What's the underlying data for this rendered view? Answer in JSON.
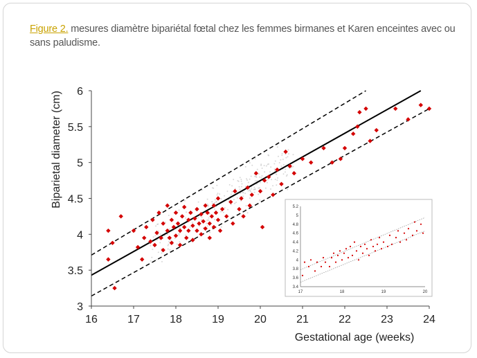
{
  "caption": {
    "label": "Figure 2.",
    "text": " mesures diamètre bipariétal fœtal chez les femmes birmanes et Karen enceintes avec ou sans paludisme."
  },
  "colors": {
    "accent": "#c9a200",
    "points": "#d40000",
    "background_points": "#b8b8b8",
    "text": "#555555"
  },
  "chart_data": [
    {
      "type": "scatter",
      "title": "",
      "xlabel": "Gestational age (weeks)",
      "ylabel": "Biparietal diameter (cm)",
      "xlim": [
        16,
        24
      ],
      "ylim": [
        3,
        6
      ],
      "xticks": [
        "16",
        "17",
        "18",
        "19",
        "20",
        "21",
        "22",
        "23",
        "24"
      ],
      "yticks": [
        "3",
        "3.5",
        "4",
        "4.5",
        "5",
        "5.5",
        "6"
      ],
      "reference_lines": [
        {
          "style": "solid",
          "x": [
            16,
            23.8
          ],
          "y": [
            3.43,
            6.0
          ]
        },
        {
          "style": "dashed",
          "x": [
            16,
            22.5
          ],
          "y": [
            3.71,
            6.0
          ]
        },
        {
          "style": "dashed",
          "x": [
            16,
            24
          ],
          "y": [
            3.14,
            5.75
          ]
        }
      ],
      "grid": false,
      "series": [
        {
          "marker": "diamond",
          "values": [
            [
              16.4,
              4.05
            ],
            [
              16.4,
              3.65
            ],
            [
              16.5,
              3.88
            ],
            [
              16.55,
              3.25
            ],
            [
              16.7,
              4.25
            ],
            [
              17.0,
              4.05
            ],
            [
              17.1,
              3.82
            ],
            [
              17.2,
              3.65
            ],
            [
              17.25,
              3.95
            ],
            [
              17.3,
              4.1
            ],
            [
              17.4,
              3.9
            ],
            [
              17.45,
              4.2
            ],
            [
              17.5,
              3.85
            ],
            [
              17.55,
              4.02
            ],
            [
              17.6,
              4.3
            ],
            [
              17.65,
              3.95
            ],
            [
              17.7,
              4.15
            ],
            [
              17.7,
              3.78
            ],
            [
              17.8,
              4.05
            ],
            [
              17.8,
              4.4
            ],
            [
              17.85,
              3.95
            ],
            [
              17.9,
              4.2
            ],
            [
              17.9,
              3.88
            ],
            [
              17.95,
              4.1
            ],
            [
              18.0,
              4.3
            ],
            [
              18.0,
              3.98
            ],
            [
              18.05,
              4.15
            ],
            [
              18.1,
              4.05
            ],
            [
              18.1,
              3.85
            ],
            [
              18.15,
              4.25
            ],
            [
              18.2,
              4.1
            ],
            [
              18.2,
              4.38
            ],
            [
              18.25,
              3.95
            ],
            [
              18.3,
              4.2
            ],
            [
              18.3,
              4.05
            ],
            [
              18.35,
              4.3
            ],
            [
              18.4,
              4.12
            ],
            [
              18.4,
              3.92
            ],
            [
              18.45,
              4.22
            ],
            [
              18.5,
              4.05
            ],
            [
              18.5,
              4.35
            ],
            [
              18.55,
              4.15
            ],
            [
              18.6,
              4.0
            ],
            [
              18.6,
              4.28
            ],
            [
              18.65,
              4.18
            ],
            [
              18.7,
              4.4
            ],
            [
              18.7,
              4.08
            ],
            [
              18.75,
              4.3
            ],
            [
              18.8,
              4.15
            ],
            [
              18.8,
              3.95
            ],
            [
              18.85,
              4.25
            ],
            [
              18.9,
              4.4
            ],
            [
              18.9,
              4.1
            ],
            [
              18.95,
              4.3
            ],
            [
              19.0,
              4.2
            ],
            [
              19.0,
              4.5
            ],
            [
              19.05,
              4.05
            ],
            [
              19.1,
              4.35
            ],
            [
              19.2,
              4.25
            ],
            [
              19.3,
              4.45
            ],
            [
              19.35,
              4.15
            ],
            [
              19.4,
              4.6
            ],
            [
              19.5,
              4.35
            ],
            [
              19.55,
              4.5
            ],
            [
              19.6,
              4.25
            ],
            [
              19.7,
              4.65
            ],
            [
              19.75,
              4.4
            ],
            [
              19.8,
              4.55
            ],
            [
              19.9,
              4.85
            ],
            [
              20.0,
              4.6
            ],
            [
              20.05,
              4.1
            ],
            [
              20.1,
              4.75
            ],
            [
              20.2,
              4.8
            ],
            [
              20.3,
              4.55
            ],
            [
              20.4,
              4.9
            ],
            [
              20.5,
              4.7
            ],
            [
              20.6,
              5.15
            ],
            [
              20.7,
              4.95
            ],
            [
              20.8,
              4.85
            ],
            [
              21.0,
              5.05
            ],
            [
              21.2,
              5.0
            ],
            [
              21.5,
              5.2
            ],
            [
              21.7,
              5.0
            ],
            [
              21.9,
              5.05
            ],
            [
              22.0,
              5.2
            ],
            [
              22.2,
              5.4
            ],
            [
              22.3,
              5.5
            ],
            [
              22.35,
              5.7
            ],
            [
              22.5,
              5.75
            ],
            [
              22.6,
              5.3
            ],
            [
              22.75,
              5.45
            ],
            [
              23.2,
              5.75
            ],
            [
              23.5,
              5.6
            ],
            [
              23.8,
              5.8
            ],
            [
              24.0,
              5.75
            ]
          ]
        }
      ]
    },
    {
      "type": "scatter",
      "title": "",
      "xlim": [
        17,
        20
      ],
      "ylim": [
        3.4,
        5.2
      ],
      "xticks": [
        "17",
        "18",
        "19",
        "20"
      ],
      "yticks": [
        "3.4",
        "3.6",
        "3.8",
        "4",
        "4.2",
        "4.4",
        "4.6",
        "4.8",
        "5",
        "5.2"
      ],
      "reference_lines": [
        {
          "style": "dotted",
          "x": [
            17,
            20
          ],
          "y": [
            3.78,
            4.95
          ]
        },
        {
          "style": "dotted",
          "x": [
            17,
            20
          ],
          "y": [
            3.5,
            4.65
          ]
        }
      ],
      "grid": false,
      "series": [
        {
          "marker": "dot",
          "values": [
            [
              17.05,
              3.65
            ],
            [
              17.1,
              3.95
            ],
            [
              17.2,
              3.85
            ],
            [
              17.25,
              4.0
            ],
            [
              17.35,
              3.75
            ],
            [
              17.4,
              3.95
            ],
            [
              17.5,
              3.85
            ],
            [
              17.55,
              4.05
            ],
            [
              17.6,
              3.95
            ],
            [
              17.7,
              3.85
            ],
            [
              17.75,
              4.05
            ],
            [
              17.8,
              4.15
            ],
            [
              17.85,
              3.95
            ],
            [
              17.9,
              4.1
            ],
            [
              17.95,
              4.2
            ],
            [
              18.0,
              4.0
            ],
            [
              18.05,
              4.15
            ],
            [
              18.1,
              4.25
            ],
            [
              18.15,
              4.05
            ],
            [
              18.2,
              4.3
            ],
            [
              18.25,
              4.1
            ],
            [
              18.3,
              4.4
            ],
            [
              18.35,
              4.2
            ],
            [
              18.4,
              4.0
            ],
            [
              18.45,
              4.3
            ],
            [
              18.5,
              4.15
            ],
            [
              18.55,
              4.35
            ],
            [
              18.6,
              4.25
            ],
            [
              18.65,
              4.1
            ],
            [
              18.7,
              4.45
            ],
            [
              18.75,
              4.3
            ],
            [
              18.8,
              4.2
            ],
            [
              18.85,
              4.35
            ],
            [
              18.9,
              4.5
            ],
            [
              18.95,
              4.25
            ],
            [
              19.0,
              4.4
            ],
            [
              19.1,
              4.3
            ],
            [
              19.15,
              4.55
            ],
            [
              19.2,
              4.35
            ],
            [
              19.3,
              4.5
            ],
            [
              19.35,
              4.65
            ],
            [
              19.4,
              4.4
            ],
            [
              19.5,
              4.6
            ],
            [
              19.55,
              4.45
            ],
            [
              19.6,
              4.7
            ],
            [
              19.7,
              4.55
            ],
            [
              19.75,
              4.85
            ],
            [
              19.8,
              4.65
            ],
            [
              19.9,
              4.8
            ],
            [
              19.95,
              4.6
            ]
          ]
        }
      ]
    }
  ]
}
